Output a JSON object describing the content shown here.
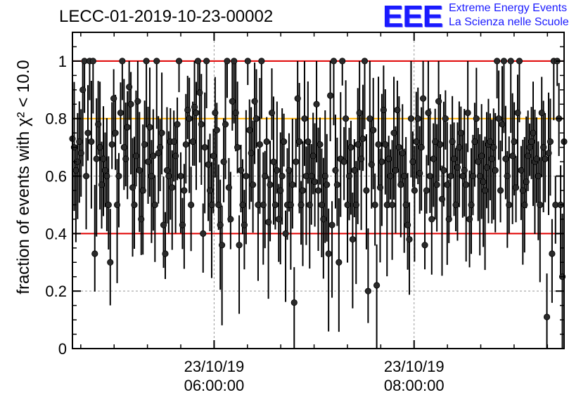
{
  "header": {
    "run_id": "LECC-01-2019-10-23-00002",
    "logo_text": "EEE",
    "logo_line1": "Extreme Energy Events",
    "logo_line2": "La Scienza nelle Scuole"
  },
  "colors": {
    "threshold_red": "#e00000",
    "threshold_orange": "#ffb000",
    "logo_blue": "#1a1aff",
    "grid": "#999999",
    "marker": "#2a2a2a"
  },
  "chart_data": {
    "type": "scatter",
    "title": "LECC-01-2019-10-23-00002",
    "ylabel": "fraction of events with χ² < 10.0",
    "xlabel": "",
    "ylim": [
      0,
      1.1
    ],
    "y_ticks": [
      0,
      0.2,
      0.4,
      0.6,
      0.8,
      1
    ],
    "y_tick_labels": [
      "0",
      "0.2",
      "0.4",
      "0.6",
      "0.8",
      "1"
    ],
    "xlim": [
      "2019-10-23T04:35:00",
      "2019-10-23T09:30:00"
    ],
    "x_ticks": [
      {
        "date": "23/10/19",
        "time": "06:00:00"
      },
      {
        "date": "23/10/19",
        "time": "08:00:00"
      }
    ],
    "grid": true,
    "reference_lines": [
      {
        "y": 1.0,
        "color": "red"
      },
      {
        "y": 0.8,
        "color": "orange"
      },
      {
        "y": 0.4,
        "color": "red"
      }
    ],
    "series": [
      {
        "marker": "circle",
        "error_bars": true,
        "x_start": "2019-10-23T04:35:00",
        "x_end": "2019-10-23T09:30:00",
        "values": [
          0.73,
          0.7,
          0.62,
          0.65,
          0.72,
          0.68,
          0.9,
          1.0,
          0.6,
          0.75,
          1.0,
          0.72,
          1.0,
          0.33,
          0.66,
          0.78,
          0.7,
          0.57,
          0.66,
          0.62,
          0.6,
          0.5,
          0.3,
          0.71,
          0.87,
          0.75,
          0.5,
          0.6,
          0.82,
          1.0,
          0.7,
          0.66,
          0.77,
          0.91,
          0.85,
          0.56,
          0.5,
          0.67,
          0.86,
          0.62,
          0.45,
          0.55,
          0.71,
          1.0,
          0.65,
          0.77,
          0.6,
          0.67,
          0.5,
          1.0,
          0.68,
          0.7,
          0.75,
          0.43,
          0.33,
          0.62,
          0.6,
          0.72,
          0.56,
          0.72,
          0.67,
          0.78,
          1.0,
          0.6,
          0.43,
          0.55,
          0.71,
          0.83,
          0.8,
          0.5,
          0.72,
          0.84,
          0.82,
          1.0,
          0.89,
          0.78,
          0.4,
          0.7,
          1.0,
          0.64,
          0.55,
          0.5,
          0.67,
          0.82,
          0.76,
          0.5,
          0.43,
          0.36,
          0.65,
          0.78,
          1.0,
          0.56,
          0.45,
          0.86,
          1.0,
          0.82,
          0.7,
          0.36,
          0.62,
          0.5,
          0.43,
          0.6,
          1.0,
          0.76,
          0.68,
          0.57,
          0.86,
          0.8,
          0.5,
          0.71,
          1.0,
          0.5,
          0.6,
          0.72,
          0.44,
          0.57,
          0.82,
          0.65,
          0.5,
          0.62,
          0.45,
          0.55,
          0.6,
          0.72,
          0.4,
          0.5,
          0.62,
          0.5,
          0.57,
          0.16,
          0.65,
          0.87,
          0.72,
          0.5,
          0.55,
          0.8,
          0.6,
          0.72,
          0.5,
          0.6,
          0.67,
          0.58,
          0.85,
          0.55,
          0.71,
          0.5,
          0.45,
          0.6,
          0.57,
          0.33,
          0.88,
          0.43,
          1.0,
          0.62,
          0.57,
          0.3,
          0.66,
          1.0,
          0.65,
          0.8,
          0.5,
          0.6,
          0.7,
          0.38,
          0.62,
          0.5,
          0.71,
          0.82,
          0.66,
          0.73,
          1.0,
          0.55,
          0.2,
          0.8,
          0.64,
          0.76,
          0.5,
          0.22,
          0.71,
          0.56,
          0.65,
          0.83,
          0.71,
          0.5,
          0.66,
          0.6,
          0.5,
          0.75,
          0.62,
          0.83,
          0.7,
          0.57,
          0.68,
          0.6,
          0.5,
          0.43,
          0.38,
          0.8,
          0.65,
          0.55,
          0.72,
          0.8,
          0.61,
          0.7,
          0.87,
          0.36,
          0.55,
          0.82,
          0.6,
          0.45,
          0.66,
          0.72,
          0.57,
          0.86,
          0.71,
          0.52,
          0.62,
          0.8,
          0.57,
          0.45,
          0.6,
          0.72,
          0.66,
          0.5,
          0.63,
          0.7,
          0.75,
          0.6,
          0.62,
          0.57,
          0.82,
          0.45,
          0.5,
          0.6,
          0.72,
          0.8,
          0.65,
          0.6,
          0.67,
          0.58,
          0.55,
          0.63,
          0.71,
          0.72,
          0.66,
          0.7,
          0.62,
          1.0,
          0.8,
          0.55,
          0.78,
          1.0,
          0.66,
          0.6,
          0.5,
          1.0,
          0.67,
          0.72,
          0.56,
          0.82,
          1.0,
          0.62,
          0.55,
          0.5,
          0.58,
          0.67,
          0.7,
          0.72,
          0.75,
          0.65,
          0.66,
          0.6,
          0.5,
          0.82,
          0.7,
          0.66,
          0.11,
          0.68,
          0.72,
          0.33,
          1.0,
          0.5,
          1.0,
          0.8,
          0.5,
          0.25,
          0.72
        ]
      }
    ]
  }
}
